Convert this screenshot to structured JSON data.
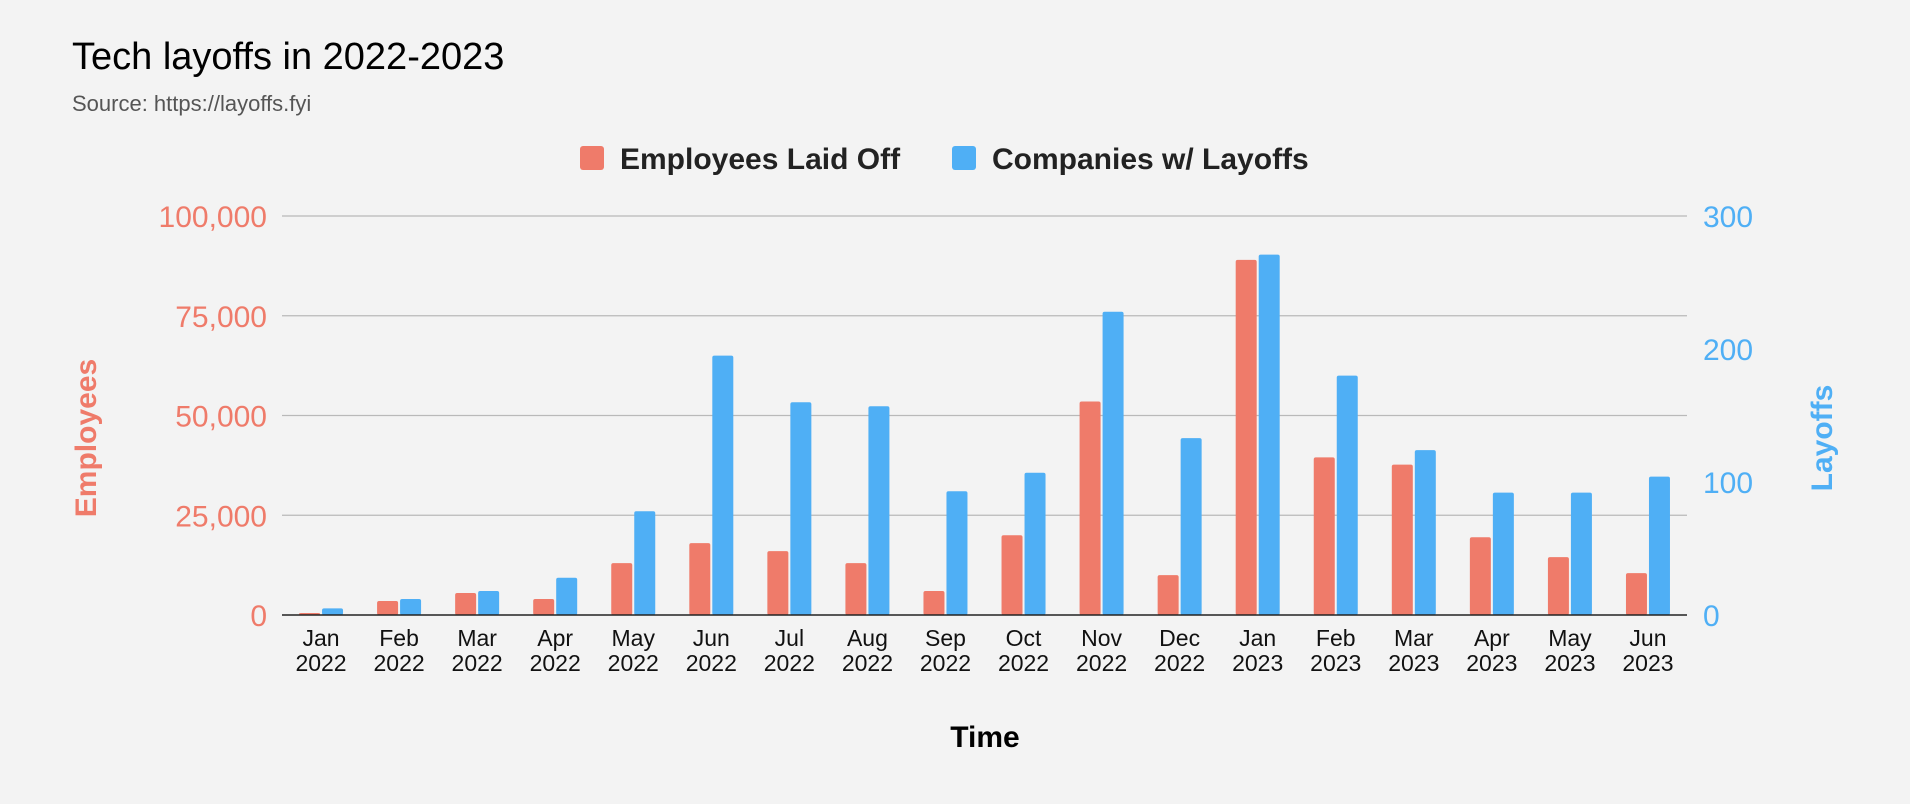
{
  "chart_data": {
    "type": "bar",
    "title": "Tech layoffs in 2022-2023",
    "subtitle": "Source: https://layoffs.fyi",
    "xlabel": "Time",
    "ylabel_left": "Employees",
    "ylabel_right": "Layoffs",
    "legend_position": "top-center",
    "grid": true,
    "ylim_left": [
      0,
      100000
    ],
    "ylim_right": [
      0,
      300
    ],
    "yticks_left": [
      "0",
      "25,000",
      "50,000",
      "75,000",
      "100,000"
    ],
    "yticks_right": [
      "0",
      "100",
      "200",
      "300"
    ],
    "yticks_left_values": [
      0,
      25000,
      50000,
      75000,
      100000
    ],
    "yticks_right_values": [
      0,
      100,
      200,
      300
    ],
    "categories": [
      [
        "Jan",
        "2022"
      ],
      [
        "Feb",
        "2022"
      ],
      [
        "Mar",
        "2022"
      ],
      [
        "Apr",
        "2022"
      ],
      [
        "May",
        "2022"
      ],
      [
        "Jun",
        "2022"
      ],
      [
        "Jul",
        "2022"
      ],
      [
        "Aug",
        "2022"
      ],
      [
        "Sep",
        "2022"
      ],
      [
        "Oct",
        "2022"
      ],
      [
        "Nov",
        "2022"
      ],
      [
        "Dec",
        "2022"
      ],
      [
        "Jan",
        "2023"
      ],
      [
        "Feb",
        "2023"
      ],
      [
        "Mar",
        "2023"
      ],
      [
        "Apr",
        "2023"
      ],
      [
        "May",
        "2023"
      ],
      [
        "Jun",
        "2023"
      ]
    ],
    "series": [
      {
        "name": "Employees Laid Off",
        "axis": "left",
        "color": "#ef7b6a",
        "values": [
          500,
          3500,
          5500,
          4000,
          13000,
          18000,
          16000,
          13000,
          6000,
          20000,
          53500,
          10000,
          89000,
          39500,
          37700,
          19500,
          14500,
          10500
        ]
      },
      {
        "name": "Companies w/ Layoffs",
        "axis": "right",
        "color": "#4faff5",
        "values": [
          5,
          12,
          18,
          28,
          78,
          195,
          160,
          157,
          93,
          107,
          228,
          133,
          271,
          180,
          124,
          92,
          92,
          104
        ]
      }
    ]
  }
}
